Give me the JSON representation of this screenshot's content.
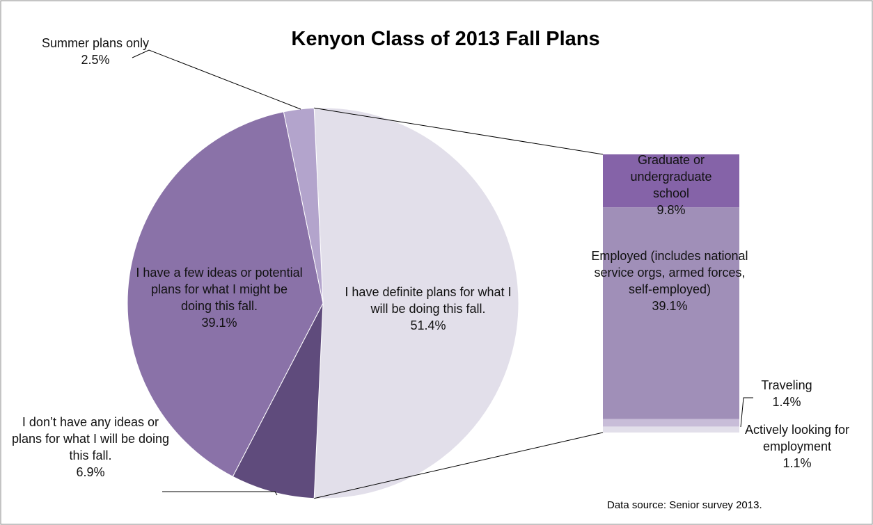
{
  "chart_data": {
    "type": "pie",
    "title": "Kenyon Class of 2013 Fall Plans",
    "categories": [
      "I have definite plans for what I will be doing this fall.",
      "I don’t have any ideas or plans for what I will be doing this fall.",
      "I have a few ideas or potential plans for what I might be doing this fall.",
      "Summer plans only"
    ],
    "values": [
      51.4,
      6.9,
      39.1,
      2.5
    ],
    "value_labels": [
      "51.4%",
      "6.9%",
      "39.1%",
      "2.5%"
    ],
    "colors": [
      "#e2dfea",
      "#5f4b7c",
      "#8a72a8",
      "#b3a4cc"
    ],
    "breakdown": {
      "categories": [
        "Graduate or undergraduate school",
        "Employed (includes national service orgs, armed forces, self-employed)",
        "Traveling",
        "Actively looking for employment"
      ],
      "values": [
        9.8,
        39.1,
        1.4,
        1.1
      ],
      "value_labels": [
        "9.8%",
        "39.1%",
        "1.4%",
        "1.1%"
      ],
      "colors": [
        "#8563a8",
        "#a08fb8",
        "#c8bdd8",
        "#e2dfea"
      ]
    },
    "note": "Data source: Senior survey 2013."
  }
}
